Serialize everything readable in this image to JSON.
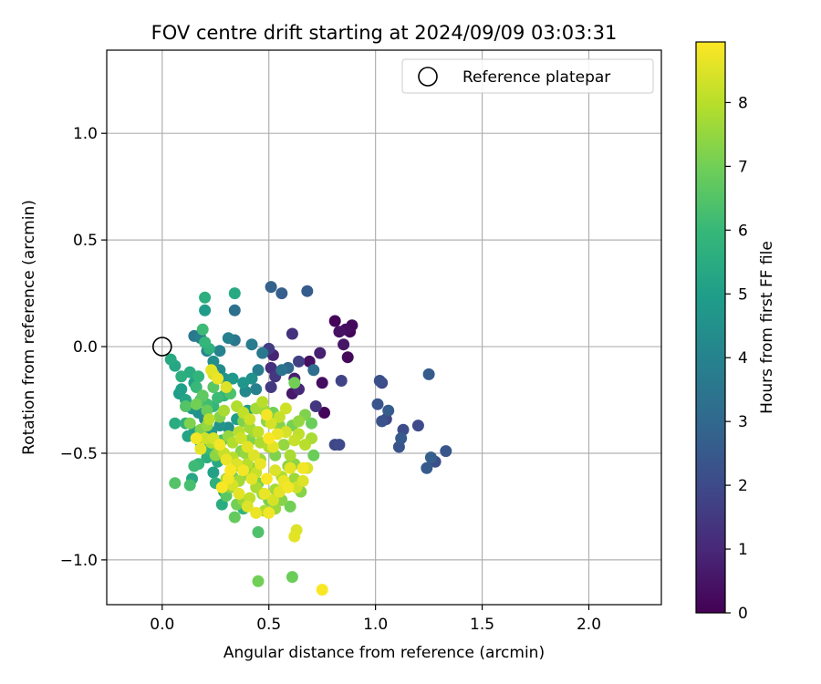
{
  "chart_data": {
    "type": "scatter",
    "title": "FOV centre drift starting at 2024/09/09 03:03:31",
    "xlabel": "Angular distance from reference (arcmin)",
    "ylabel": "Rotation from reference (arcmin)",
    "xlim": [
      -0.26,
      2.34
    ],
    "ylim": [
      -1.21,
      1.39
    ],
    "x_ticks": [
      0.0,
      0.5,
      1.0,
      1.5,
      2.0
    ],
    "x_tick_labels": [
      "0.0",
      "0.5",
      "1.0",
      "1.5",
      "2.0"
    ],
    "y_ticks": [
      -1.0,
      -0.5,
      0.0,
      0.5,
      1.0
    ],
    "y_tick_labels": [
      "−1.0",
      "−0.5",
      "0.0",
      "0.5",
      "1.0"
    ],
    "grid": true,
    "legend": {
      "label": "Reference platepar",
      "placement": "top-right",
      "marker": "open-circle"
    },
    "reference_point": {
      "x": 0.0,
      "y": 0.0
    },
    "colorbar": {
      "label": "Hours from first FF file",
      "colormap": "viridis",
      "range": [
        0,
        8.95
      ],
      "ticks": [
        0,
        1,
        2,
        3,
        4,
        5,
        6,
        7,
        8
      ],
      "tick_labels": [
        "0",
        "1",
        "2",
        "3",
        "4",
        "5",
        "6",
        "7",
        "8"
      ]
    },
    "points": [
      [
        0.81,
        0.12,
        0.1
      ],
      [
        0.86,
        0.08,
        0.3
      ],
      [
        0.89,
        0.1,
        0.2
      ],
      [
        0.83,
        0.07,
        0.4
      ],
      [
        0.88,
        0.07,
        0.1
      ],
      [
        0.85,
        0.01,
        0.5
      ],
      [
        0.87,
        -0.05,
        0.2
      ],
      [
        0.75,
        -0.17,
        0.3
      ],
      [
        0.76,
        -0.31,
        0.1
      ],
      [
        0.69,
        -0.07,
        0.4
      ],
      [
        0.74,
        -0.03,
        0.8
      ],
      [
        0.61,
        -0.22,
        0.6
      ],
      [
        0.64,
        -0.2,
        1.0
      ],
      [
        0.62,
        -0.15,
        0.8
      ],
      [
        0.61,
        0.06,
        1.3
      ],
      [
        0.52,
        -0.04,
        0.9
      ],
      [
        0.53,
        -0.14,
        1.4
      ],
      [
        0.5,
        -0.01,
        1.6
      ],
      [
        0.51,
        -0.1,
        1.2
      ],
      [
        0.51,
        -0.19,
        1.5
      ],
      [
        0.64,
        -0.07,
        1.7
      ],
      [
        0.72,
        -0.28,
        1.4
      ],
      [
        0.81,
        -0.46,
        1.9
      ],
      [
        0.83,
        -0.46,
        2.0
      ],
      [
        0.84,
        -0.16,
        1.8
      ],
      [
        1.02,
        -0.16,
        2.2
      ],
      [
        1.03,
        -0.17,
        2.0
      ],
      [
        1.01,
        -0.27,
        2.4
      ],
      [
        1.06,
        -0.3,
        2.6
      ],
      [
        1.05,
        -0.34,
        1.9
      ],
      [
        1.03,
        -0.35,
        2.3
      ],
      [
        1.13,
        -0.39,
        2.1
      ],
      [
        1.12,
        -0.43,
        2.5
      ],
      [
        1.11,
        -0.47,
        2.3
      ],
      [
        1.2,
        -0.37,
        2.0
      ],
      [
        1.25,
        -0.13,
        2.6
      ],
      [
        1.26,
        -0.52,
        2.7
      ],
      [
        1.28,
        -0.54,
        2.2
      ],
      [
        1.33,
        -0.49,
        2.4
      ],
      [
        1.24,
        -0.57,
        2.6
      ],
      [
        0.56,
        0.25,
        2.7
      ],
      [
        0.68,
        0.26,
        2.6
      ],
      [
        0.51,
        0.28,
        2.8
      ],
      [
        0.59,
        -0.1,
        3.0
      ],
      [
        0.71,
        -0.11,
        3.2
      ],
      [
        0.56,
        -0.11,
        3.4
      ],
      [
        0.47,
        -0.03,
        3.6
      ],
      [
        0.45,
        -0.11,
        3.8
      ],
      [
        0.42,
        0.01,
        3.7
      ],
      [
        0.34,
        0.17,
        3.3
      ],
      [
        0.31,
        0.04,
        3.9
      ],
      [
        0.34,
        0.03,
        3.5
      ],
      [
        0.27,
        -0.02,
        4.0
      ],
      [
        0.15,
        0.05,
        3.6
      ],
      [
        0.18,
        0.04,
        3.8
      ],
      [
        0.21,
        -0.02,
        4.1
      ],
      [
        0.24,
        -0.07,
        4.4
      ],
      [
        0.27,
        -0.11,
        4.3
      ],
      [
        0.29,
        -0.15,
        4.6
      ],
      [
        0.33,
        -0.15,
        4.8
      ],
      [
        0.38,
        -0.17,
        4.7
      ],
      [
        0.39,
        -0.21,
        4.2
      ],
      [
        0.42,
        -0.15,
        4.5
      ],
      [
        0.44,
        -0.2,
        3.9
      ],
      [
        0.4,
        -0.3,
        4.9
      ],
      [
        0.35,
        -0.34,
        5.0
      ],
      [
        0.31,
        -0.38,
        4.4
      ],
      [
        0.27,
        -0.37,
        4.6
      ],
      [
        0.23,
        -0.4,
        4.8
      ],
      [
        0.2,
        -0.34,
        4.3
      ],
      [
        0.17,
        -0.31,
        4.5
      ],
      [
        0.14,
        -0.29,
        4.7
      ],
      [
        0.11,
        -0.25,
        5.2
      ],
      [
        0.09,
        -0.2,
        5.0
      ],
      [
        0.08,
        -0.22,
        4.9
      ],
      [
        0.04,
        -0.06,
        5.4
      ],
      [
        0.06,
        -0.09,
        5.3
      ],
      [
        0.09,
        -0.14,
        5.6
      ],
      [
        0.13,
        -0.12,
        5.5
      ],
      [
        0.15,
        -0.17,
        5.1
      ],
      [
        0.17,
        -0.14,
        5.8
      ],
      [
        0.2,
        0.02,
        5.9
      ],
      [
        0.22,
        -0.01,
        5.7
      ],
      [
        0.2,
        0.17,
        4.9
      ],
      [
        0.2,
        0.23,
        5.6
      ],
      [
        0.34,
        0.25,
        5.4
      ],
      [
        0.19,
        0.08,
        6.1
      ],
      [
        0.16,
        -0.19,
        6.0
      ],
      [
        0.18,
        -0.25,
        6.3
      ],
      [
        0.21,
        -0.27,
        6.2
      ],
      [
        0.24,
        -0.28,
        5.9
      ],
      [
        0.26,
        -0.24,
        6.1
      ],
      [
        0.29,
        -0.23,
        5.8
      ],
      [
        0.32,
        -0.22,
        6.4
      ],
      [
        0.24,
        -0.19,
        6.6
      ],
      [
        0.11,
        -0.28,
        6.5
      ],
      [
        0.06,
        -0.36,
        5.5
      ],
      [
        0.11,
        -0.36,
        5.7
      ],
      [
        0.12,
        -0.42,
        5.2
      ],
      [
        0.15,
        -0.4,
        5.0
      ],
      [
        0.18,
        -0.45,
        5.3
      ],
      [
        0.21,
        -0.52,
        5.6
      ],
      [
        0.22,
        -0.48,
        6.0
      ],
      [
        0.25,
        -0.46,
        6.8
      ],
      [
        0.28,
        -0.44,
        6.2
      ],
      [
        0.26,
        -0.54,
        5.4
      ],
      [
        0.24,
        -0.59,
        5.1
      ],
      [
        0.17,
        -0.55,
        5.9
      ],
      [
        0.15,
        -0.56,
        6.1
      ],
      [
        0.14,
        -0.62,
        5.3
      ],
      [
        0.13,
        -0.65,
        6.3
      ],
      [
        0.06,
        -0.64,
        6.5
      ],
      [
        0.25,
        -0.64,
        5.7
      ],
      [
        0.29,
        -0.68,
        5.2
      ],
      [
        0.3,
        -0.7,
        6.6
      ],
      [
        0.28,
        -0.74,
        5.5
      ],
      [
        0.38,
        -0.76,
        5.8
      ],
      [
        0.34,
        -0.8,
        6.8
      ],
      [
        0.45,
        -0.87,
        6.4
      ],
      [
        0.45,
        -1.1,
        7.0
      ],
      [
        0.61,
        -1.08,
        6.9
      ],
      [
        0.63,
        -0.86,
        8.5
      ],
      [
        0.62,
        -0.89,
        8.6
      ],
      [
        0.75,
        -1.14,
        8.9
      ],
      [
        0.33,
        -0.61,
        7.1
      ],
      [
        0.36,
        -0.56,
        7.3
      ],
      [
        0.39,
        -0.5,
        7.5
      ],
      [
        0.41,
        -0.44,
        7.2
      ],
      [
        0.43,
        -0.4,
        7.6
      ],
      [
        0.46,
        -0.45,
        7.8
      ],
      [
        0.49,
        -0.35,
        7.4
      ],
      [
        0.52,
        -0.31,
        7.0
      ],
      [
        0.55,
        -0.37,
        7.3
      ],
      [
        0.58,
        -0.4,
        7.7
      ],
      [
        0.61,
        -0.37,
        7.1
      ],
      [
        0.64,
        -0.35,
        7.5
      ],
      [
        0.67,
        -0.32,
        7.2
      ],
      [
        0.7,
        -0.36,
        6.9
      ],
      [
        0.62,
        -0.17,
        7.0
      ],
      [
        0.71,
        -0.51,
        6.9
      ],
      [
        0.65,
        -0.68,
        7.3
      ],
      [
        0.62,
        -0.62,
        7.6
      ],
      [
        0.59,
        -0.56,
        7.4
      ],
      [
        0.56,
        -0.61,
        7.9
      ],
      [
        0.53,
        -0.67,
        7.7
      ],
      [
        0.5,
        -0.72,
        7.1
      ],
      [
        0.47,
        -0.69,
        7.5
      ],
      [
        0.44,
        -0.66,
        7.8
      ],
      [
        0.41,
        -0.71,
        8.1
      ],
      [
        0.38,
        -0.72,
        7.6
      ],
      [
        0.35,
        -0.74,
        7.0
      ],
      [
        0.32,
        -0.66,
        7.4
      ],
      [
        0.3,
        -0.62,
        7.7
      ],
      [
        0.33,
        -0.52,
        8.0
      ],
      [
        0.37,
        -0.49,
        7.3
      ],
      [
        0.42,
        -0.57,
        7.1
      ],
      [
        0.46,
        -0.53,
        7.6
      ],
      [
        0.5,
        -0.47,
        7.9
      ],
      [
        0.53,
        -0.51,
        7.2
      ],
      [
        0.57,
        -0.46,
        7.5
      ],
      [
        0.6,
        -0.51,
        7.8
      ],
      [
        0.62,
        -0.55,
        7.4
      ],
      [
        0.6,
        -0.75,
        7.0
      ],
      [
        0.56,
        -0.72,
        7.3
      ],
      [
        0.53,
        -0.76,
        7.6
      ],
      [
        0.48,
        -0.77,
        7.8
      ],
      [
        0.45,
        -0.64,
        7.1
      ],
      [
        0.39,
        -0.6,
        7.4
      ],
      [
        0.36,
        -0.63,
        7.7
      ],
      [
        0.4,
        -0.55,
        8.0
      ],
      [
        0.44,
        -0.59,
        8.2
      ],
      [
        0.27,
        -0.33,
        7.3
      ],
      [
        0.29,
        -0.3,
        7.8
      ],
      [
        0.31,
        -0.42,
        7.5
      ],
      [
        0.33,
        -0.45,
        7.9
      ],
      [
        0.36,
        -0.4,
        8.0
      ],
      [
        0.38,
        -0.35,
        7.2
      ],
      [
        0.41,
        -0.38,
        7.7
      ],
      [
        0.45,
        -0.4,
        8.1
      ],
      [
        0.48,
        -0.3,
        7.6
      ],
      [
        0.29,
        -0.5,
        8.2
      ],
      [
        0.27,
        -0.48,
        7.6
      ],
      [
        0.25,
        -0.51,
        7.4
      ],
      [
        0.23,
        -0.45,
        7.9
      ],
      [
        0.2,
        -0.43,
        8.3
      ],
      [
        0.18,
        -0.39,
        7.2
      ],
      [
        0.21,
        -0.37,
        7.5
      ],
      [
        0.22,
        -0.34,
        8.0
      ],
      [
        0.19,
        -0.23,
        6.7
      ],
      [
        0.16,
        -0.27,
        7.0
      ],
      [
        0.21,
        -0.3,
        6.9
      ],
      [
        0.24,
        -0.13,
        8.4
      ],
      [
        0.23,
        -0.11,
        8.6
      ],
      [
        0.26,
        -0.15,
        8.7
      ],
      [
        0.3,
        -0.19,
        8.5
      ],
      [
        0.16,
        -0.43,
        8.8
      ],
      [
        0.18,
        -0.48,
        8.6
      ],
      [
        0.24,
        -0.43,
        8.4
      ],
      [
        0.27,
        -0.46,
        8.8
      ],
      [
        0.3,
        -0.53,
        8.7
      ],
      [
        0.32,
        -0.58,
        8.9
      ],
      [
        0.35,
        -0.55,
        8.5
      ],
      [
        0.38,
        -0.58,
        8.8
      ],
      [
        0.42,
        -0.62,
        8.6
      ],
      [
        0.46,
        -0.55,
        8.7
      ],
      [
        0.49,
        -0.62,
        8.9
      ],
      [
        0.53,
        -0.58,
        8.5
      ],
      [
        0.57,
        -0.63,
        8.7
      ],
      [
        0.6,
        -0.57,
        8.6
      ],
      [
        0.66,
        -0.57,
        8.8
      ],
      [
        0.68,
        -0.57,
        8.5
      ],
      [
        0.5,
        -0.43,
        8.9
      ],
      [
        0.52,
        -0.47,
        8.6
      ],
      [
        0.49,
        -0.32,
        8.8
      ],
      [
        0.51,
        -0.36,
        8.4
      ],
      [
        0.54,
        -0.41,
        8.7
      ],
      [
        0.37,
        -0.43,
        8.3
      ],
      [
        0.4,
        -0.47,
        8.6
      ],
      [
        0.43,
        -0.51,
        8.5
      ],
      [
        0.33,
        -0.65,
        8.4
      ],
      [
        0.36,
        -0.69,
        8.6
      ],
      [
        0.31,
        -0.62,
        8.8
      ],
      [
        0.28,
        -0.66,
        8.9
      ],
      [
        0.48,
        -0.69,
        8.7
      ],
      [
        0.52,
        -0.72,
        8.4
      ],
      [
        0.55,
        -0.68,
        8.6
      ],
      [
        0.59,
        -0.66,
        8.8
      ],
      [
        0.4,
        -0.75,
        8.5
      ],
      [
        0.44,
        -0.78,
        8.7
      ],
      [
        0.5,
        -0.78,
        8.8
      ],
      [
        0.63,
        -0.66,
        8.3
      ],
      [
        0.66,
        -0.63,
        8.5
      ],
      [
        0.62,
        -0.44,
        8.2
      ],
      [
        0.58,
        -0.4,
        8.4
      ],
      [
        0.35,
        -0.28,
        7.9
      ],
      [
        0.38,
        -0.31,
        8.1
      ],
      [
        0.41,
        -0.34,
        8.3
      ],
      [
        0.44,
        -0.29,
        7.7
      ],
      [
        0.47,
        -0.26,
        8.0
      ],
      [
        0.55,
        -0.33,
        8.2
      ],
      [
        0.58,
        -0.29,
        8.3
      ],
      [
        0.64,
        -0.41,
        8.1
      ],
      [
        0.67,
        -0.46,
        8.0
      ],
      [
        0.7,
        -0.43,
        7.8
      ],
      [
        0.13,
        -0.36,
        7.2
      ]
    ]
  }
}
